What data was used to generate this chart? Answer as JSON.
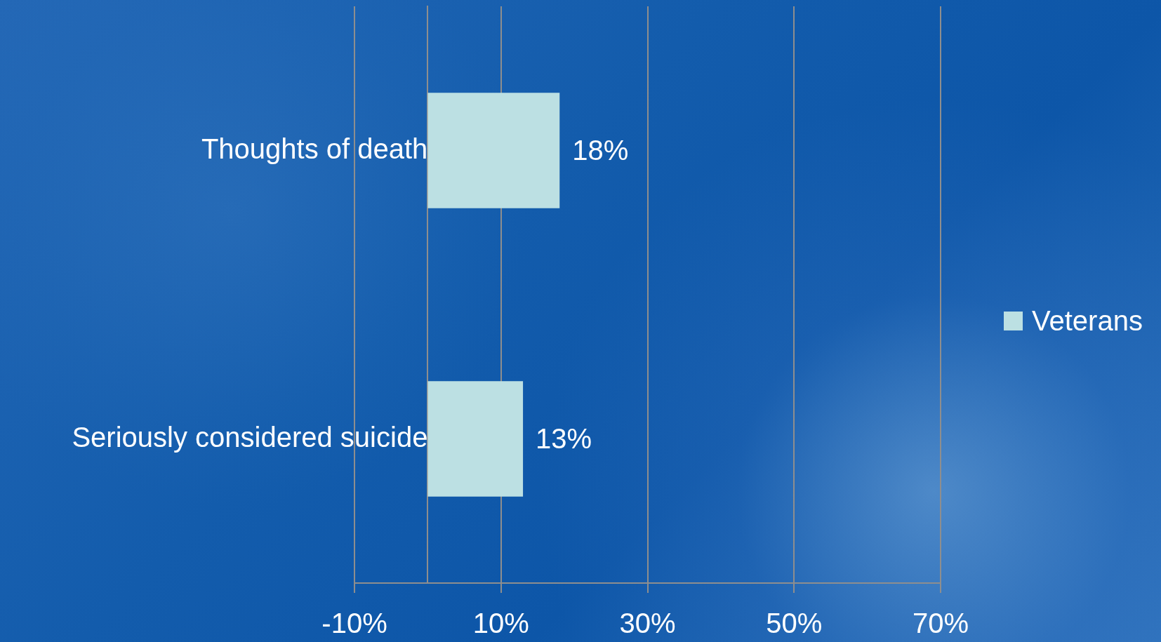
{
  "chart_data": {
    "type": "bar",
    "orientation": "horizontal",
    "categories": [
      "Thoughts of death",
      "Seriously considered suicide"
    ],
    "series": [
      {
        "name": "Veterans",
        "color": "#bce0e3",
        "values": [
          18,
          13
        ],
        "value_labels": [
          "18%",
          "13%"
        ]
      }
    ],
    "xlim": [
      -10,
      70
    ],
    "xticks": [
      {
        "value": -10,
        "label": "-10%"
      },
      {
        "value": 10,
        "label": "10%"
      },
      {
        "value": 30,
        "label": "30%"
      },
      {
        "value": 50,
        "label": "50%"
      },
      {
        "value": 70,
        "label": "70%"
      }
    ],
    "grid": "x",
    "legend": "right"
  }
}
